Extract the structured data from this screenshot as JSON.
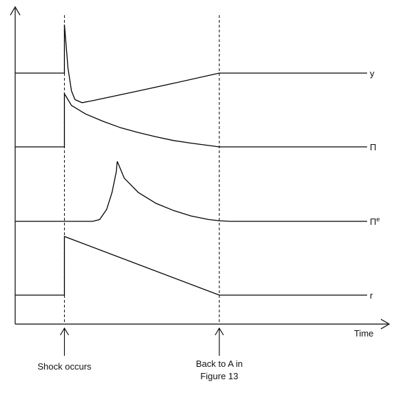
{
  "chart_data": {
    "type": "line",
    "title": "",
    "xlabel": "Time",
    "ylabel": "",
    "grid": false,
    "legend": "none",
    "series_labels_position": "right-end",
    "xlim": [
      0,
      100
    ],
    "markers": [
      {
        "name": "shock",
        "x": 14,
        "label": "Shock occurs"
      },
      {
        "name": "back-to-a",
        "x": 58,
        "label_lines": [
          "Back to A in",
          "Figure 13"
        ]
      }
    ],
    "series": [
      {
        "name": "y",
        "label": "y",
        "baseline": 0,
        "x": [
          0,
          14,
          14,
          14.3,
          15,
          16,
          17,
          19,
          22,
          35,
          45,
          58,
          100
        ],
        "y": [
          0,
          0,
          0.95,
          0.7,
          0.1,
          -0.35,
          -0.52,
          -0.58,
          -0.54,
          -0.35,
          -0.2,
          0,
          0
        ]
      },
      {
        "name": "inflation",
        "label": "Π",
        "baseline": 0,
        "x": [
          0,
          14,
          14,
          16,
          20,
          25,
          30,
          35,
          40,
          45,
          50,
          58,
          100
        ],
        "y": [
          0,
          0,
          1,
          0.78,
          0.62,
          0.48,
          0.36,
          0.27,
          0.19,
          0.12,
          0.07,
          0,
          0
        ]
      },
      {
        "name": "expected-inflation",
        "label": "Πᵉ",
        "label_text": "Π",
        "label_superscript": "e",
        "baseline": 0,
        "x": [
          0,
          22,
          24,
          26,
          27.5,
          28.7,
          29,
          31,
          35,
          40,
          45,
          50,
          55,
          58,
          61,
          100
        ],
        "y": [
          0,
          0,
          0.03,
          0.2,
          0.48,
          0.82,
          1,
          0.72,
          0.48,
          0.3,
          0.18,
          0.09,
          0.03,
          0.01,
          0,
          0
        ]
      },
      {
        "name": "interest-rate",
        "label": "r",
        "baseline": 0,
        "x": [
          0,
          14,
          14,
          58,
          100
        ],
        "y": [
          0,
          0,
          1,
          0,
          0
        ]
      }
    ]
  }
}
